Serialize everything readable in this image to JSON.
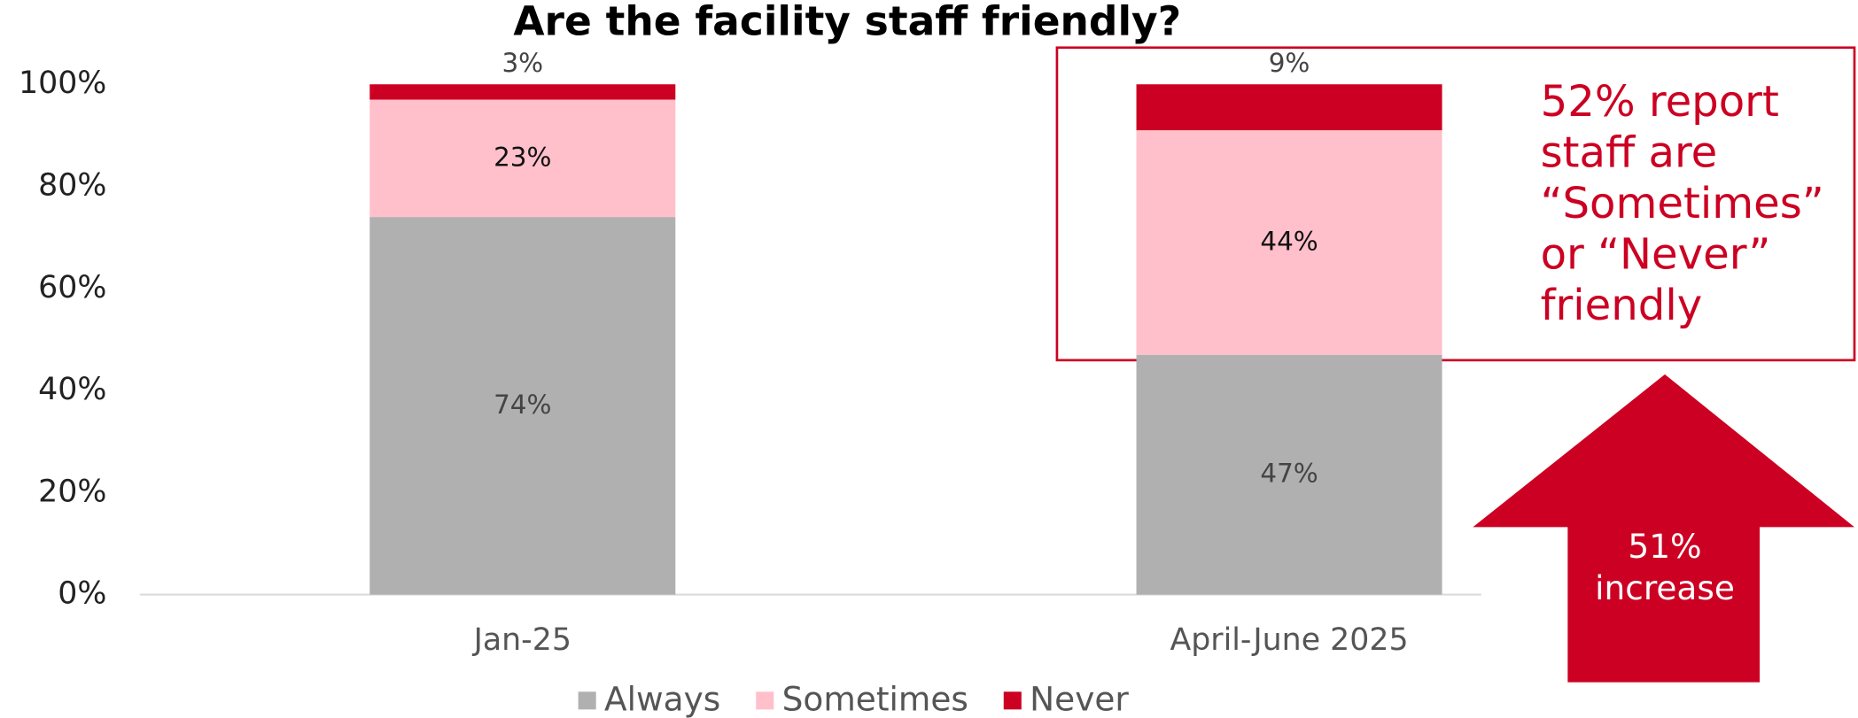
{
  "chart_data": {
    "type": "stacked_bar",
    "title": "Are the facility staff friendly?",
    "categories": [
      "Jan-25",
      "April-June 2025"
    ],
    "series": [
      {
        "name": "Always",
        "color": "#b0b0b0",
        "values": [
          74,
          47
        ],
        "value_labels": [
          "74%",
          "47%"
        ]
      },
      {
        "name": "Sometimes",
        "color": "#ffc0cb",
        "values": [
          23,
          44
        ],
        "value_labels": [
          "23%",
          "44%"
        ]
      },
      {
        "name": "Never",
        "color": "#cc0022",
        "values": [
          3,
          9
        ],
        "value_labels": [
          "3%",
          "9%"
        ]
      }
    ],
    "ylim": [
      0,
      100
    ],
    "yticks": [
      {
        "value": 0,
        "label": "0%"
      },
      {
        "value": 20,
        "label": "20%"
      },
      {
        "value": 40,
        "label": "40%"
      },
      {
        "value": 60,
        "label": "60%"
      },
      {
        "value": 80,
        "label": "80%"
      },
      {
        "value": 100,
        "label": "100%"
      }
    ],
    "grid": false,
    "legend": "bottom",
    "annotations": [
      {
        "lines": [
          "52% report",
          "staff are",
          "“Sometimes”",
          "or “Never”",
          "friendly"
        ],
        "color": "#cc0022"
      },
      {
        "lines": [
          "51%",
          "increase"
        ],
        "color": "#cc0022"
      }
    ]
  }
}
